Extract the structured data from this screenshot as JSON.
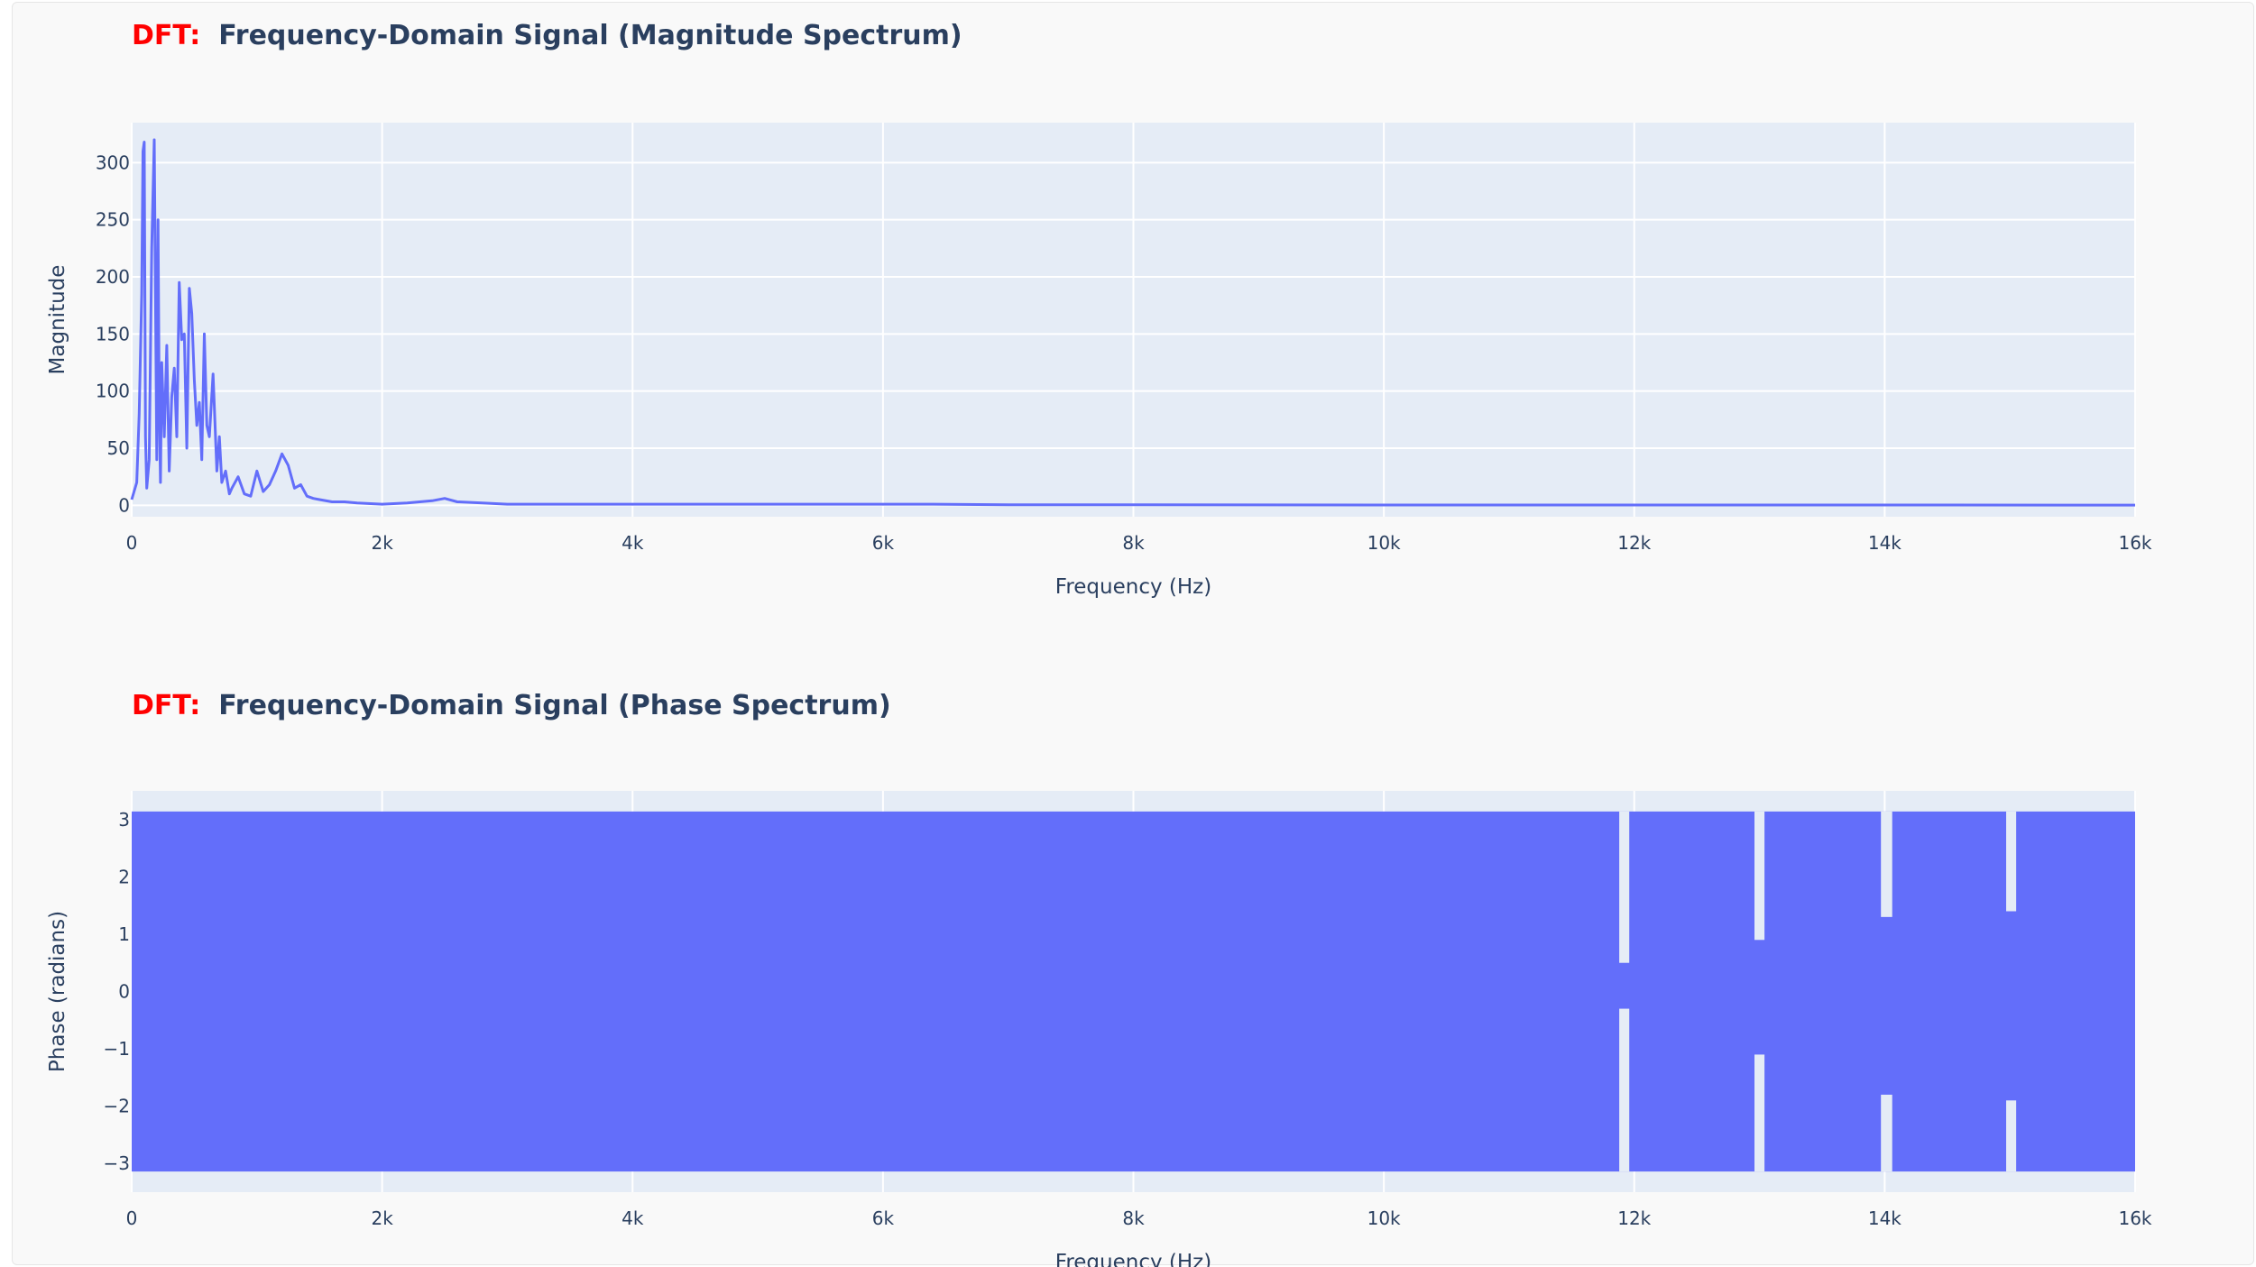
{
  "colors": {
    "trace": "#636efa",
    "plot_bg": "#e5ecf6",
    "grid": "#ffffff",
    "text": "#2a3f5f",
    "prefix": "#ff0000"
  },
  "chart_data": [
    {
      "type": "line",
      "title_prefix": "DFT:",
      "title": "Frequency-Domain Signal (Magnitude Spectrum)",
      "xlabel": "Frequency (Hz)",
      "ylabel": "Magnitude",
      "xlim": [
        0,
        16000
      ],
      "ylim": [
        -10,
        335
      ],
      "x_ticks": [
        0,
        2000,
        4000,
        6000,
        8000,
        10000,
        12000,
        14000,
        16000
      ],
      "x_tick_labels": [
        "0",
        "2k",
        "4k",
        "6k",
        "8k",
        "10k",
        "12k",
        "14k",
        "16k"
      ],
      "y_ticks": [
        0,
        50,
        100,
        150,
        200,
        250,
        300
      ],
      "y_tick_labels": [
        "0",
        "50",
        "100",
        "150",
        "200",
        "250",
        "300"
      ],
      "series": [
        {
          "x": [
            0,
            40,
            60,
            80,
            90,
            100,
            110,
            120,
            140,
            160,
            180,
            200,
            210,
            220,
            230,
            240,
            260,
            280,
            300,
            320,
            340,
            360,
            380,
            400,
            420,
            440,
            460,
            480,
            500,
            520,
            540,
            560,
            580,
            600,
            620,
            650,
            680,
            700,
            720,
            750,
            780,
            800,
            850,
            900,
            950,
            1000,
            1050,
            1100,
            1150,
            1200,
            1250,
            1300,
            1350,
            1400,
            1450,
            1500,
            1600,
            1700,
            1800,
            2000,
            2200,
            2400,
            2500,
            2600,
            2800,
            3000,
            3500,
            4000,
            4500,
            5000,
            5500,
            6000,
            6400,
            7000,
            8000,
            10000,
            12000,
            14000,
            16000
          ],
          "y": [
            5,
            20,
            80,
            185,
            310,
            318,
            60,
            15,
            40,
            225,
            320,
            40,
            250,
            90,
            20,
            125,
            60,
            140,
            30,
            95,
            120,
            60,
            195,
            145,
            150,
            50,
            190,
            168,
            110,
            70,
            90,
            40,
            150,
            70,
            60,
            115,
            30,
            60,
            20,
            30,
            10,
            15,
            25,
            10,
            8,
            30,
            12,
            18,
            30,
            45,
            35,
            15,
            18,
            8,
            6,
            5,
            3,
            3,
            2,
            1,
            2,
            4,
            6,
            3,
            2,
            1,
            1,
            1,
            1,
            1,
            1,
            1,
            1,
            0.5,
            0.5,
            0.3,
            0.3,
            0.3,
            0.2
          ]
        }
      ]
    },
    {
      "type": "area",
      "title_prefix": "DFT:",
      "title": "Frequency-Domain Signal (Phase Spectrum)",
      "xlabel": "Frequency (Hz)",
      "ylabel": "Phase (radians)",
      "xlim": [
        0,
        16000
      ],
      "ylim": [
        -3.5,
        3.5
      ],
      "x_ticks": [
        0,
        2000,
        4000,
        6000,
        8000,
        10000,
        12000,
        14000,
        16000
      ],
      "x_tick_labels": [
        "0",
        "2k",
        "4k",
        "6k",
        "8k",
        "10k",
        "12k",
        "14k",
        "16k"
      ],
      "y_ticks": [
        -3,
        -2,
        -1,
        0,
        1,
        2,
        3
      ],
      "y_tick_labels": [
        "−3",
        "−2",
        "−1",
        "0",
        "1",
        "2",
        "3"
      ],
      "band": {
        "low": -3.14,
        "high": 3.14
      },
      "gaps": [
        {
          "x": [
            11880,
            11960
          ],
          "low": -0.3,
          "high": 0.5
        },
        {
          "x": [
            12960,
            13040
          ],
          "low": -1.1,
          "high": 0.9
        },
        {
          "x": [
            13970,
            14060
          ],
          "low": -1.8,
          "high": 1.3
        },
        {
          "x": [
            14970,
            15050
          ],
          "low": -1.9,
          "high": 1.4
        }
      ]
    }
  ]
}
